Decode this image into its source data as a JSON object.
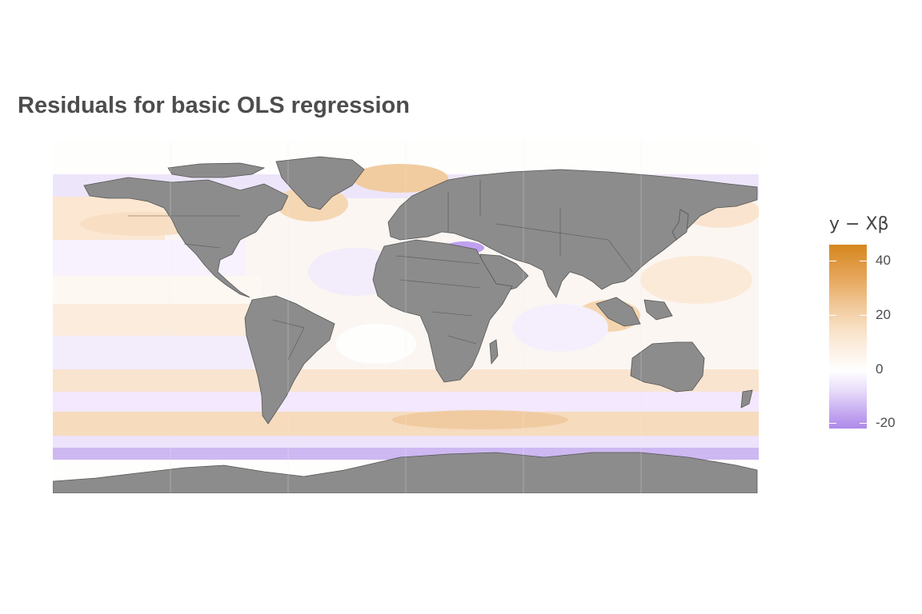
{
  "title": "Residuals for basic OLS regression",
  "legend": {
    "title": "y − Xβ",
    "min": -22,
    "max": 46,
    "ticks": [
      {
        "value": 40,
        "label": "40"
      },
      {
        "value": 20,
        "label": "20"
      },
      {
        "value": 0,
        "label": "0"
      },
      {
        "value": -20,
        "label": "-20"
      }
    ],
    "colors": {
      "high": "#d5871f",
      "mid": "#ffffff",
      "low": "#ad8ae8"
    }
  },
  "map": {
    "land_color": "#8c8c8c",
    "border_color": "#555555",
    "grid_lon": [
      -120,
      -60,
      0,
      60,
      120
    ],
    "grid_lat": [
      -60,
      -30,
      0,
      30,
      60
    ]
  }
}
